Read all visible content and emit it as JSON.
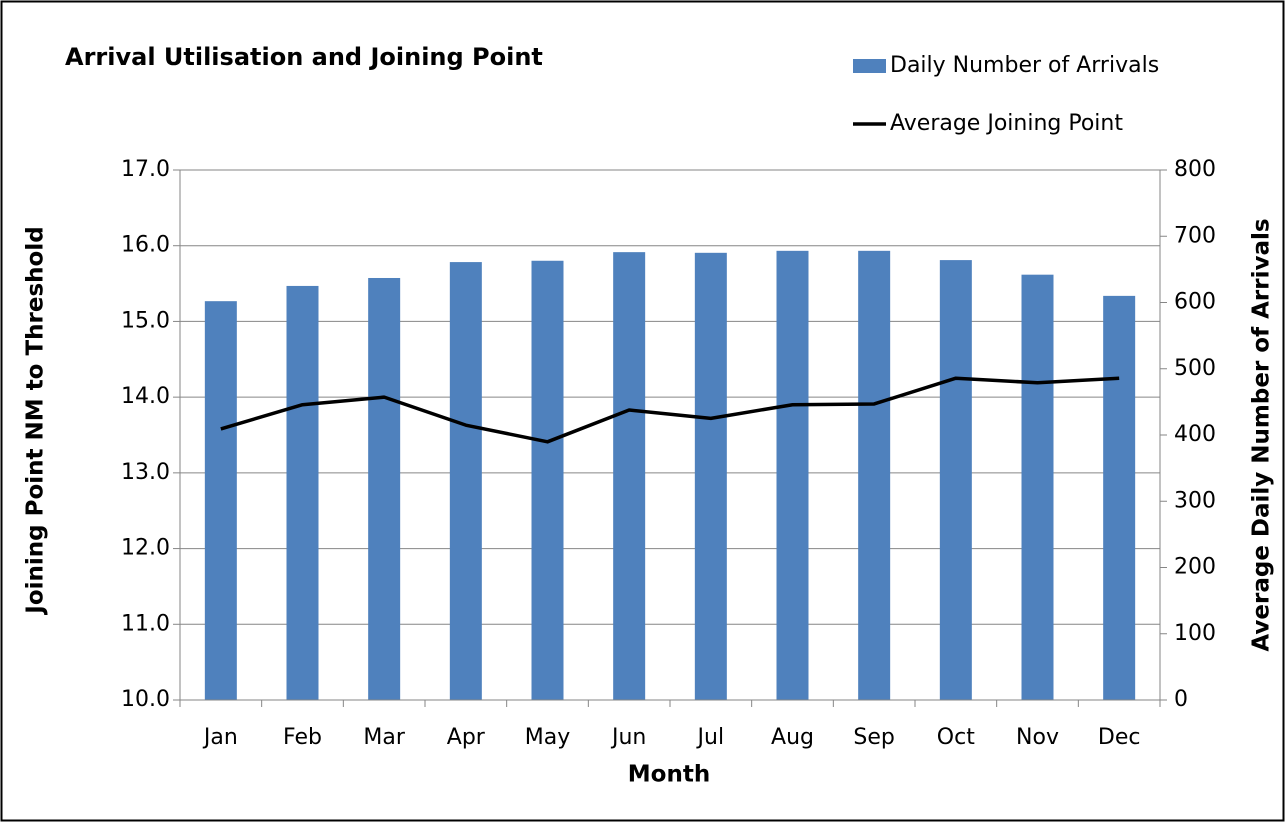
{
  "chart_data": {
    "type": "combo",
    "title": "Arrival Utilisation and Joining Point",
    "x_label": "Month",
    "y_label": "Joining Point NM  to Threshold",
    "y2_label": "Average Daily Number of Arrivals",
    "categories": [
      "Jan",
      "Feb",
      "Mar",
      "Apr",
      "May",
      "Jun",
      "Jul",
      "Aug",
      "Sep",
      "Oct",
      "Nov",
      "Dec"
    ],
    "series": [
      {
        "name": "Daily Number of Arrivals",
        "type": "bar",
        "axis": "y2",
        "color": "#4f81bd",
        "values": [
          602,
          625,
          637,
          661,
          663,
          676,
          675,
          678,
          678,
          664,
          642,
          610
        ]
      },
      {
        "name": "Average Joining Point",
        "type": "line",
        "color": "#000000",
        "values": [
          13.58,
          13.9,
          14.0,
          13.63,
          13.41,
          13.83,
          13.72,
          13.9,
          13.91,
          14.25,
          14.19,
          14.25
        ]
      }
    ],
    "ylim": [
      10,
      17
    ],
    "yticks": [
      {
        "value": 10,
        "label": "10.0"
      },
      {
        "value": 11,
        "label": "11.0"
      },
      {
        "value": 12,
        "label": "12.0"
      },
      {
        "value": 13,
        "label": "13.0"
      },
      {
        "value": 14,
        "label": "14.0"
      },
      {
        "value": 15,
        "label": "15.0"
      },
      {
        "value": 16,
        "label": "16.0"
      },
      {
        "value": 17,
        "label": "17.0"
      }
    ],
    "y2lim": [
      0,
      800
    ],
    "y2ticks": [
      0,
      100,
      200,
      300,
      400,
      500,
      600,
      700,
      800
    ],
    "grid": true,
    "legend": "top-right"
  }
}
